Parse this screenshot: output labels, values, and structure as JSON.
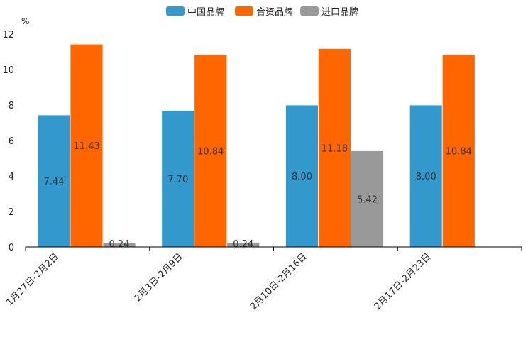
{
  "chart_data": {
    "type": "bar",
    "unit": "%",
    "categories": [
      "1月27日-2月2日",
      "2月3日-2月9日",
      "2月10日-2月16日",
      "2月17日-2月23日"
    ],
    "series": [
      {
        "name": "中国品牌",
        "color": "#3399cc",
        "values": [
          7.44,
          7.7,
          8.0,
          8.0
        ],
        "labels": [
          "7.44",
          "7.70",
          "8.00",
          "8.00"
        ]
      },
      {
        "name": "合资品牌",
        "color": "#ff6600",
        "values": [
          11.43,
          10.84,
          11.18,
          10.84
        ],
        "labels": [
          "11.43",
          "10.84",
          "11.18",
          "10.84"
        ]
      },
      {
        "name": "进口品牌",
        "color": "#999999",
        "values": [
          0.24,
          0.24,
          5.42,
          null
        ],
        "labels": [
          "0.24",
          "0.24",
          "5.42",
          null
        ]
      }
    ],
    "ylim": [
      0,
      12
    ],
    "yticks": [
      0,
      2,
      4,
      6,
      8,
      10,
      12
    ],
    "legend_position": "top-center",
    "grid": false
  }
}
